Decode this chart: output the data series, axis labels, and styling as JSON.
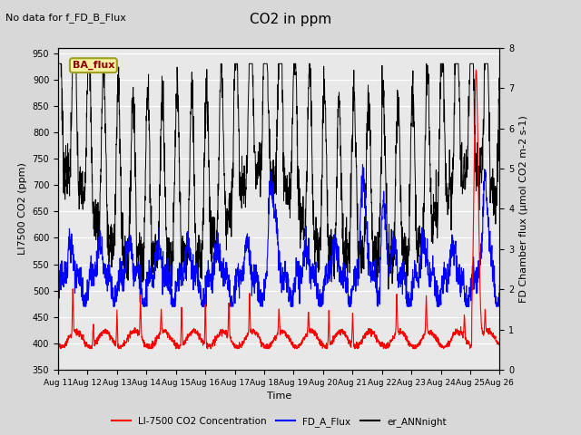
{
  "title": "CO2 in ppm",
  "top_left_text": "No data for f_FD_B_Flux",
  "legend_box_text": "BA_flux",
  "xlabel": "Time",
  "ylabel_left": "LI7500 CO2 (ppm)",
  "ylabel_right": "FD Chamber flux (μmol CO2 m-2 s-1)",
  "ylim_left": [
    350,
    960
  ],
  "ylim_right": [
    0.0,
    8.0
  ],
  "yticks_left": [
    350,
    400,
    450,
    500,
    550,
    600,
    650,
    700,
    750,
    800,
    850,
    900,
    950
  ],
  "yticks_right": [
    0.0,
    1.0,
    2.0,
    3.0,
    4.0,
    5.0,
    6.0,
    7.0,
    8.0
  ],
  "xtick_labels": [
    "Aug 11",
    "Aug 12",
    "Aug 13",
    "Aug 14",
    "Aug 15",
    "Aug 16",
    "Aug 17",
    "Aug 18",
    "Aug 19",
    "Aug 20",
    "Aug 21",
    "Aug 22",
    "Aug 23",
    "Aug 24",
    "Aug 25",
    "Aug 26"
  ],
  "bg_color": "#d8d8d8",
  "plot_bg_color": "#e8e8e8",
  "legend_entries": [
    "LI-7500 CO2 Concentration",
    "FD_A_Flux",
    "er_ANNnight"
  ],
  "legend_colors": [
    "red",
    "blue",
    "black"
  ],
  "n_days": 15,
  "pts_per_day": 144,
  "figsize": [
    6.4,
    4.8
  ],
  "dpi": 100
}
